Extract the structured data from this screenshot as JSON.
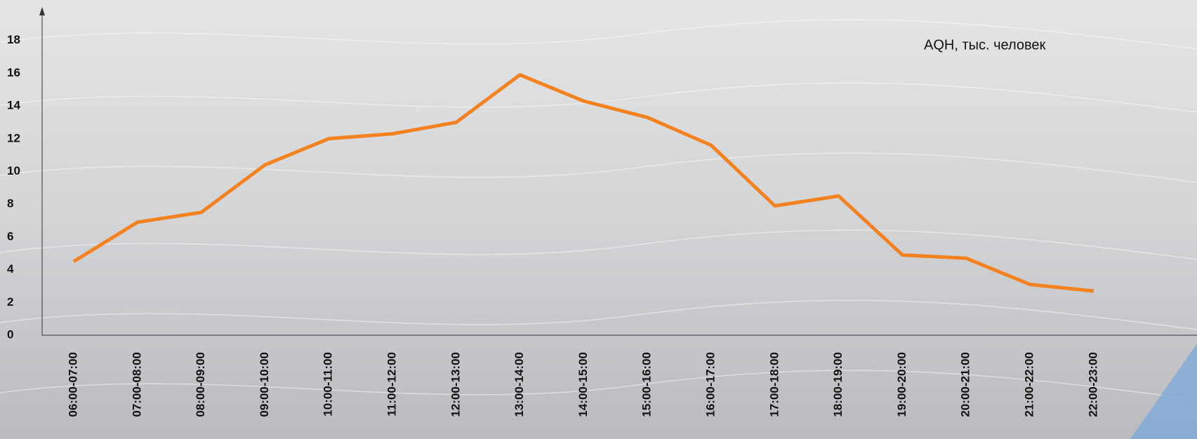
{
  "chart_data": {
    "type": "line",
    "categories": [
      "06:00-07:00",
      "07:00-08:00",
      "08:00-09:00",
      "09:00-10:00",
      "10:00-11:00",
      "11:00-12:00",
      "12:00-13:00",
      "13:00-14:00",
      "14:00-15:00",
      "15:00-16:00",
      "16:00-17:00",
      "17:00-18:00",
      "18:00-19:00",
      "19:00-20:00",
      "20:00-21:00",
      "21:00-22:00",
      "22:00-23:00"
    ],
    "series": [
      {
        "name": "AQH, тыс. человек",
        "color": "#f58220",
        "values": [
          4.5,
          6.9,
          7.5,
          10.4,
          12.0,
          12.3,
          13.0,
          15.9,
          14.3,
          13.3,
          11.6,
          7.9,
          8.5,
          4.9,
          4.7,
          3.1,
          2.7
        ]
      }
    ],
    "ylim": [
      0,
      20
    ],
    "yticks": [
      0,
      2,
      4,
      6,
      8,
      10,
      12,
      14,
      16,
      18
    ],
    "grid": false
  }
}
